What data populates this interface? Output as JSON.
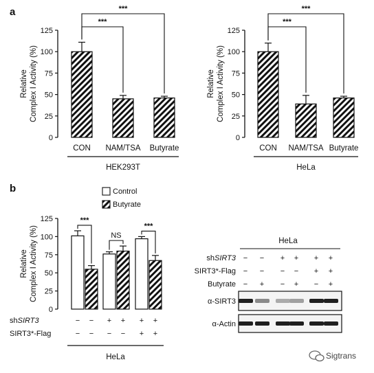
{
  "panels": {
    "a": "a",
    "b": "b"
  },
  "chart_data": [
    {
      "type": "bar",
      "panel": "a",
      "ylabel_lines": [
        "Relative",
        "Complex I Activity (%)"
      ],
      "ylim": [
        0,
        125
      ],
      "yticks": [
        "0",
        "25",
        "50",
        "75",
        "100",
        "125"
      ],
      "categories": [
        "CON",
        "NAM/TSA",
        "Butyrate"
      ],
      "values": [
        100,
        45,
        46
      ],
      "errors": [
        11,
        4,
        2
      ],
      "group_label": "HEK293T",
      "significance": [
        {
          "from": 0,
          "to": 1,
          "label": "***"
        },
        {
          "from": 0,
          "to": 2,
          "label": "***"
        }
      ]
    },
    {
      "type": "bar",
      "panel": "a",
      "ylabel_lines": [
        "Relative",
        "Complex I Activity (%)"
      ],
      "ylim": [
        0,
        125
      ],
      "yticks": [
        "0",
        "25",
        "50",
        "75",
        "100",
        "125"
      ],
      "categories": [
        "CON",
        "NAM/TSA",
        "Butyrate"
      ],
      "values": [
        100,
        39,
        46
      ],
      "errors": [
        10,
        10,
        2
      ],
      "group_label": "HeLa",
      "significance": [
        {
          "from": 0,
          "to": 1,
          "label": "***"
        },
        {
          "from": 0,
          "to": 2,
          "label": "***"
        }
      ]
    },
    {
      "type": "bar",
      "panel": "b",
      "ylabel_lines": [
        "Relative",
        "Complex I Activity (%)"
      ],
      "ylim": [
        0,
        125
      ],
      "yticks": [
        "0",
        "25",
        "50",
        "75",
        "100",
        "125"
      ],
      "legend": [
        "Control",
        "Butyrate"
      ],
      "series": [
        {
          "name": "Control",
          "values": [
            101,
            76,
            97
          ],
          "errors": [
            7,
            3,
            3
          ]
        },
        {
          "name": "Butyrate",
          "values": [
            55,
            80,
            67
          ],
          "errors": [
            5,
            7,
            7
          ]
        }
      ],
      "significance": [
        "***",
        "NS",
        "***"
      ],
      "row_labels": [
        "shSIRT3",
        "SIRT3*-Flag"
      ],
      "conditions": [
        [
          "−",
          "−",
          "+",
          "+",
          "+",
          "+"
        ],
        [
          "−",
          "−",
          "−",
          "−",
          "+",
          "+"
        ]
      ],
      "group_label": "HeLa"
    }
  ],
  "blot": {
    "title": "HeLa",
    "row_labels": [
      "shSIRT3",
      "SIRT3*-Flag",
      "Butyrate"
    ],
    "conditions": [
      [
        "−",
        "−",
        "+",
        "+",
        "+",
        "+"
      ],
      [
        "−",
        "−",
        "−",
        "−",
        "+",
        "+"
      ],
      [
        "−",
        "+",
        "−",
        "+",
        "−",
        "+"
      ]
    ],
    "bands": [
      {
        "label": "α-SIRT3",
        "intensity": [
          0.95,
          0.45,
          0.3,
          0.35,
          0.95,
          0.95
        ]
      },
      {
        "label": "α-Actin",
        "intensity": [
          0.95,
          0.95,
          0.95,
          0.95,
          0.95,
          0.95
        ]
      }
    ]
  },
  "watermark": "Sigtrans"
}
